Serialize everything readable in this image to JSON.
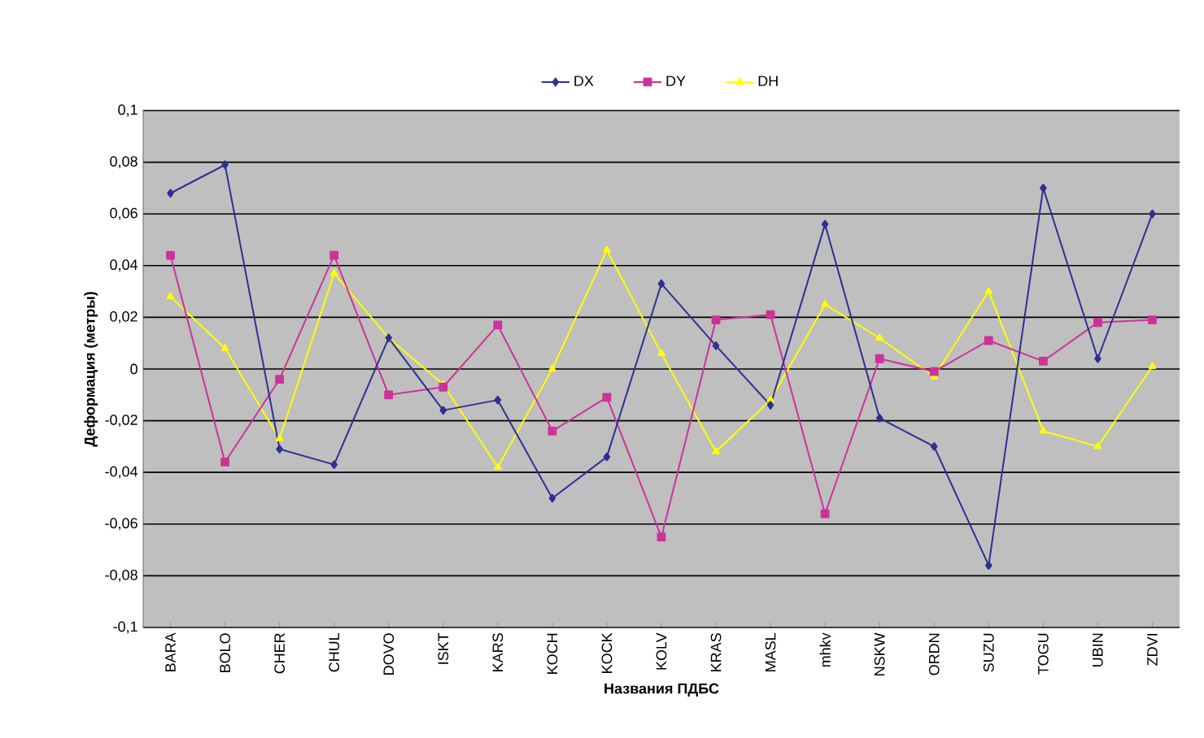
{
  "chart_data": {
    "type": "line",
    "xlabel": "Названия ПДБС",
    "ylabel": "Деформация (метры)",
    "categories": [
      "BARA",
      "BOLO",
      "CHER",
      "CHUL",
      "DOVO",
      "ISKT",
      "KARS",
      "KOCH",
      "KOCK",
      "KOLV",
      "KRAS",
      "MASL",
      "mhkv",
      "NSKW",
      "ORDN",
      "SUZU",
      "TOGU",
      "UBIN",
      "ZDVI"
    ],
    "series": [
      {
        "name": "DX",
        "color": "#2e3092",
        "marker": "diamond",
        "values": [
          0.068,
          0.079,
          -0.031,
          -0.037,
          0.012,
          -0.016,
          -0.012,
          -0.05,
          -0.034,
          0.033,
          0.009,
          -0.014,
          0.056,
          -0.019,
          -0.03,
          -0.076,
          0.07,
          0.004,
          0.06
        ]
      },
      {
        "name": "DY",
        "color": "#cc3399",
        "marker": "square",
        "values": [
          0.044,
          -0.036,
          -0.004,
          0.044,
          -0.01,
          -0.007,
          0.017,
          -0.024,
          -0.011,
          -0.065,
          0.019,
          0.021,
          -0.056,
          0.004,
          -0.001,
          0.011,
          0.003,
          0.018,
          0.019
        ]
      },
      {
        "name": "DH",
        "color": "#ffff00",
        "marker": "triangle",
        "values": [
          0.028,
          0.008,
          -0.027,
          0.037,
          0.012,
          -0.006,
          -0.038,
          0.0,
          0.046,
          0.006,
          -0.032,
          -0.012,
          0.025,
          0.012,
          -0.003,
          0.03,
          -0.024,
          -0.03,
          0.001
        ]
      }
    ],
    "ylim": [
      -0.1,
      0.1
    ],
    "yticks": [
      {
        "value": -0.1,
        "label": "-0,1"
      },
      {
        "value": -0.08,
        "label": "-0,08"
      },
      {
        "value": -0.06,
        "label": "-0,06"
      },
      {
        "value": -0.04,
        "label": "-0,04"
      },
      {
        "value": -0.02,
        "label": "-0,02"
      },
      {
        "value": 0,
        "label": "0"
      },
      {
        "value": 0.02,
        "label": "0,02"
      },
      {
        "value": 0.04,
        "label": "0,04"
      },
      {
        "value": 0.06,
        "label": "0,06"
      },
      {
        "value": 0.08,
        "label": "0,08"
      },
      {
        "value": 0.1,
        "label": "0,1"
      }
    ],
    "grid": "y",
    "legend": "top",
    "line_style": "solid"
  }
}
